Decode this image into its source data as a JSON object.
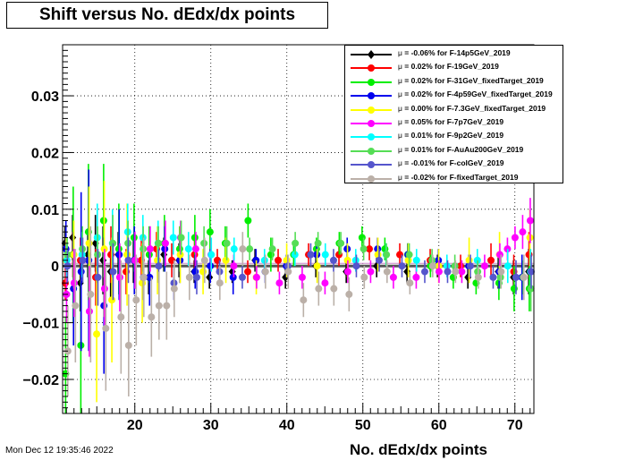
{
  "title": "Shift versus No. dEdx/dx points",
  "timestamp": "Mon Dec 12 19:35:46 2022",
  "chart_data": {
    "type": "scatter",
    "title": "Shift versus No. dEdx/dx points",
    "xlabel": "No. dEdx/dx points",
    "ylabel": "",
    "xlim": [
      10.5,
      72.5
    ],
    "ylim": [
      -0.026,
      0.039
    ],
    "xticks": [
      20,
      30,
      40,
      50,
      60,
      70
    ],
    "yticks": [
      -0.02,
      -0.01,
      0,
      0.01,
      0.02,
      0.03
    ],
    "ytick_labels": [
      "−0.02",
      "−0.01",
      "0",
      "0.01",
      "0.02",
      "0.03"
    ],
    "grid": true,
    "legend_position": "top-right",
    "series": [
      {
        "name": "-0.06% for F-14p5GeV_2019",
        "mu": "μ",
        "color": "#000000",
        "marker": "diamond",
        "x": [
          11,
          12,
          13,
          14,
          15,
          16,
          17,
          18,
          20,
          22,
          24,
          26,
          28,
          30,
          33,
          36,
          40,
          44,
          48,
          52,
          56,
          60,
          64,
          68,
          70,
          72
        ],
        "y": [
          0.004,
          0.005,
          -0.003,
          0.002,
          0.004,
          0.001,
          -0.001,
          0.002,
          0.001,
          -0.002,
          0.002,
          0.001,
          -0.001,
          -0.002,
          -0.001,
          0.001,
          -0.002,
          0,
          -0.001,
          0,
          -0.001,
          0,
          -0.002,
          -0.001,
          -0.002,
          -0.001
        ],
        "err": [
          0.003,
          0.004,
          0.005,
          0.004,
          0.005,
          0.006,
          0.005,
          0.004,
          0.004,
          0.003,
          0.003,
          0.003,
          0.002,
          0.002,
          0.002,
          0.002,
          0.002,
          0.002,
          0.002,
          0.002,
          0.002,
          0.002,
          0.002,
          0.003,
          0.003,
          0.004
        ]
      },
      {
        "name": "0.02% for F-19GeV_2019",
        "mu": "μ",
        "color": "#ff0000",
        "marker": "circle",
        "x": [
          11,
          12,
          13,
          15,
          17,
          19,
          21,
          23,
          25,
          28,
          31,
          35,
          39,
          43,
          47,
          51,
          55,
          59,
          63,
          67,
          70,
          72
        ],
        "y": [
          -0.003,
          0.002,
          0.001,
          -0.002,
          0.002,
          -0.001,
          0.001,
          0.003,
          0.001,
          0.002,
          0.001,
          -0.001,
          0.001,
          0.002,
          0.002,
          0.003,
          0.002,
          0.001,
          0,
          0.001,
          -0.001,
          0.002
        ],
        "err": [
          0.003,
          0.004,
          0.004,
          0.005,
          0.005,
          0.004,
          0.004,
          0.003,
          0.003,
          0.003,
          0.002,
          0.002,
          0.002,
          0.002,
          0.002,
          0.002,
          0.002,
          0.002,
          0.002,
          0.003,
          0.003,
          0.004
        ]
      },
      {
        "name": "0.02% for F-31GeV_fixedTarget_2019",
        "mu": "μ",
        "color": "#00ee00",
        "marker": "circle",
        "x": [
          11,
          12,
          13,
          14,
          16,
          18,
          20,
          22,
          24,
          26,
          28,
          30,
          32,
          35,
          38,
          41,
          44,
          47,
          50,
          53,
          56,
          59,
          62,
          65,
          68,
          70,
          72
        ],
        "y": [
          -0.019,
          0.002,
          -0.014,
          0.006,
          0.008,
          0.003,
          0.005,
          0.002,
          0.004,
          0.003,
          0.005,
          0.006,
          0.004,
          0.008,
          0.002,
          0.002,
          0.003,
          0.004,
          0.005,
          0.003,
          0.002,
          0,
          -0.002,
          -0.003,
          -0.003,
          -0.004,
          -0.004
        ],
        "err": [
          0.01,
          0.012,
          0.014,
          0.012,
          0.01,
          0.008,
          0.006,
          0.005,
          0.005,
          0.004,
          0.004,
          0.004,
          0.003,
          0.003,
          0.003,
          0.002,
          0.002,
          0.002,
          0.002,
          0.002,
          0.002,
          0.002,
          0.002,
          0.002,
          0.003,
          0.004,
          0.004
        ]
      },
      {
        "name": "0.02% for F-4p59GeV_fixedTarget_2019",
        "mu": "μ",
        "color": "#0000ee",
        "marker": "circle",
        "x": [
          11,
          12,
          13,
          14,
          16,
          18,
          20,
          22,
          24,
          26,
          28,
          30,
          33,
          36,
          40,
          44,
          48,
          52,
          56,
          60,
          64,
          68,
          71
        ],
        "y": [
          0.003,
          -0.004,
          -0.001,
          0.001,
          -0.007,
          0.002,
          0.001,
          -0.002,
          0.003,
          0.001,
          -0.001,
          0,
          -0.002,
          0.001,
          0,
          0.002,
          0.003,
          0.003,
          0.002,
          0.001,
          0,
          -0.001,
          -0.002
        ],
        "err": [
          0.005,
          0.01,
          0.014,
          0.016,
          0.012,
          0.008,
          0.006,
          0.005,
          0.004,
          0.004,
          0.003,
          0.003,
          0.003,
          0.002,
          0.002,
          0.002,
          0.002,
          0.002,
          0.002,
          0.002,
          0.002,
          0.003,
          0.004
        ]
      },
      {
        "name": "0.00% for F-7.3GeV_fixedTarget_2019",
        "mu": "μ",
        "color": "#ffff00",
        "marker": "circle",
        "x": [
          11,
          12,
          14,
          15,
          16,
          17,
          19,
          21,
          23,
          26,
          29,
          32,
          36,
          40,
          44,
          48,
          52,
          56,
          60,
          64,
          68,
          72
        ],
        "y": [
          0.001,
          0.002,
          0.004,
          -0.012,
          0.003,
          -0.006,
          0.002,
          -0.003,
          0.001,
          0.002,
          -0.001,
          0.001,
          -0.002,
          0.001,
          0,
          0.001,
          0.002,
          0.001,
          0,
          0.001,
          0.002,
          0.005
        ],
        "err": [
          0.004,
          0.006,
          0.01,
          0.012,
          0.012,
          0.011,
          0.009,
          0.007,
          0.006,
          0.005,
          0.004,
          0.004,
          0.003,
          0.003,
          0.003,
          0.003,
          0.003,
          0.003,
          0.003,
          0.004,
          0.004,
          0.005
        ]
      },
      {
        "name": "0.05% for F-7p7GeV_2019",
        "mu": "μ",
        "color": "#ff00ff",
        "marker": "circle",
        "x": [
          11,
          12,
          14,
          16,
          18,
          20,
          22,
          24,
          26,
          28,
          30,
          33,
          36,
          39,
          42,
          45,
          48,
          51,
          54,
          57,
          60,
          63,
          66,
          68,
          69,
          70,
          71,
          72
        ],
        "y": [
          -0.005,
          -0.003,
          -0.008,
          -0.004,
          -0.002,
          0.001,
          0.003,
          0.004,
          0.005,
          0.003,
          0.002,
          0,
          -0.002,
          -0.003,
          -0.002,
          -0.003,
          -0.001,
          -0.001,
          -0.002,
          -0.002,
          -0.001,
          -0.001,
          0,
          0.002,
          0.003,
          0.005,
          0.006,
          0.008
        ],
        "err": [
          0.005,
          0.006,
          0.008,
          0.007,
          0.006,
          0.005,
          0.004,
          0.004,
          0.003,
          0.003,
          0.003,
          0.002,
          0.002,
          0.002,
          0.002,
          0.002,
          0.002,
          0.002,
          0.002,
          0.002,
          0.002,
          0.002,
          0.002,
          0.002,
          0.002,
          0.002,
          0.003,
          0.004
        ]
      },
      {
        "name": "0.01% for F-9p2GeV_2019",
        "mu": "μ",
        "color": "#00ffff",
        "marker": "circle",
        "x": [
          11,
          13,
          15,
          17,
          19,
          21,
          23,
          25,
          27,
          30,
          33,
          37,
          41,
          45,
          49,
          53,
          57,
          61,
          65,
          69,
          72
        ],
        "y": [
          0.001,
          0.002,
          0.005,
          0.004,
          0.006,
          0.005,
          0.004,
          0.005,
          0.003,
          0.002,
          0.003,
          0.001,
          0.002,
          0.002,
          0.001,
          0.002,
          0.001,
          0,
          0.001,
          0,
          -0.001
        ],
        "err": [
          0.003,
          0.004,
          0.006,
          0.006,
          0.005,
          0.004,
          0.004,
          0.003,
          0.003,
          0.003,
          0.002,
          0.002,
          0.002,
          0.002,
          0.002,
          0.002,
          0.002,
          0.002,
          0.002,
          0.003,
          0.004
        ]
      },
      {
        "name": "0.01% for F-AuAu200GeV_2019",
        "mu": "μ",
        "color": "#55dd55",
        "marker": "circle",
        "x": [
          11,
          13,
          15,
          17,
          19,
          21,
          23,
          26,
          29,
          32,
          35,
          38,
          41,
          44,
          47,
          50,
          53,
          56,
          59,
          62,
          65,
          68,
          71,
          72
        ],
        "y": [
          0.002,
          0.003,
          0.002,
          0.004,
          0.004,
          0.003,
          0.004,
          0.005,
          0.004,
          0.004,
          0.003,
          0.003,
          0.004,
          0.004,
          0.004,
          0.003,
          0.002,
          0.002,
          0.001,
          0,
          -0.001,
          -0.002,
          -0.002,
          -0.004
        ],
        "err": [
          0.003,
          0.004,
          0.005,
          0.005,
          0.004,
          0.004,
          0.003,
          0.003,
          0.003,
          0.003,
          0.002,
          0.002,
          0.002,
          0.002,
          0.002,
          0.002,
          0.002,
          0.002,
          0.002,
          0.002,
          0.002,
          0.002,
          0.003,
          0.004
        ]
      },
      {
        "name": "-0.01% for F-colGeV_2019",
        "mu": "μ",
        "color": "#5555cc",
        "marker": "circle",
        "x": [
          11,
          13,
          15,
          17,
          19,
          21,
          23,
          25,
          28,
          31,
          34,
          37,
          40,
          43,
          46,
          49,
          52,
          55,
          58,
          61,
          64,
          67,
          70,
          72
        ],
        "y": [
          0,
          0.001,
          -0.002,
          -0.001,
          0.001,
          -0.002,
          0,
          -0.003,
          -0.002,
          -0.001,
          -0.002,
          -0.001,
          0,
          0.002,
          0.001,
          0,
          0.001,
          0,
          -0.001,
          -0.001,
          0,
          -0.002,
          -0.002,
          -0.001
        ],
        "err": [
          0.003,
          0.004,
          0.005,
          0.005,
          0.004,
          0.004,
          0.003,
          0.003,
          0.003,
          0.002,
          0.002,
          0.002,
          0.002,
          0.002,
          0.002,
          0.002,
          0.002,
          0.002,
          0.002,
          0.002,
          0.002,
          0.002,
          0.003,
          0.003
        ]
      },
      {
        "name": "-0.02% for F-fixedTarget_2019",
        "mu": "μ",
        "color": "#bbb0a8",
        "marker": "circle",
        "x": [
          11,
          12,
          14,
          16,
          18,
          19,
          20,
          21,
          22,
          23,
          24,
          25,
          27,
          29,
          31,
          34,
          37,
          40,
          42,
          44,
          46,
          48,
          50,
          53,
          56,
          59,
          62,
          65,
          68,
          71
        ],
        "y": [
          -0.015,
          -0.007,
          -0.005,
          -0.011,
          -0.009,
          -0.014,
          -0.006,
          -0.002,
          -0.009,
          -0.007,
          -0.007,
          -0.004,
          -0.002,
          0.001,
          -0.003,
          0.003,
          -0.001,
          -0.001,
          -0.006,
          -0.004,
          -0.004,
          -0.005,
          -0.002,
          -0.001,
          -0.003,
          0,
          -0.001,
          -0.002,
          -0.001,
          -0.002
        ],
        "err": [
          0.008,
          0.01,
          0.012,
          0.011,
          0.01,
          0.009,
          0.008,
          0.007,
          0.007,
          0.006,
          0.006,
          0.005,
          0.004,
          0.004,
          0.003,
          0.003,
          0.003,
          0.003,
          0.003,
          0.003,
          0.003,
          0.003,
          0.002,
          0.002,
          0.002,
          0.002,
          0.002,
          0.002,
          0.003,
          0.004
        ]
      }
    ]
  }
}
